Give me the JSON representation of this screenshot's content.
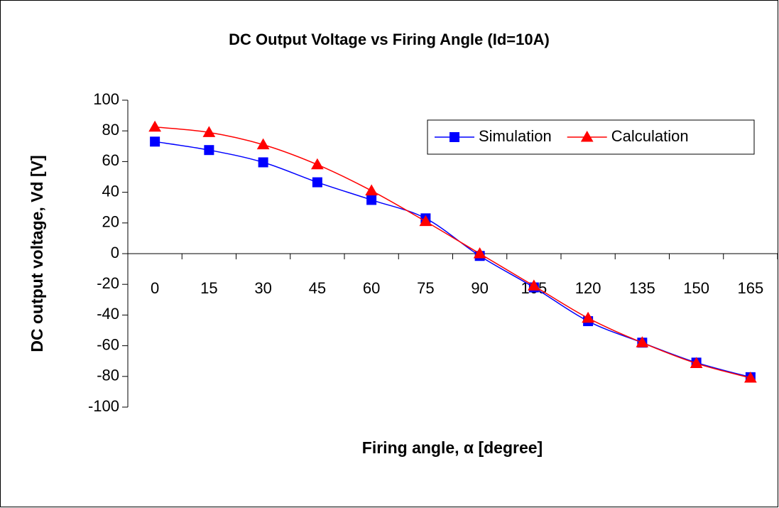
{
  "chart_data": {
    "type": "line",
    "title": "DC Output Voltage vs Firing Angle (Id=10A)",
    "x_label": "Firing angle, α [degree]",
    "y_label": "DC output voltage, Vd [V]",
    "categories": [
      0,
      15,
      30,
      45,
      60,
      75,
      90,
      105,
      120,
      135,
      150,
      165
    ],
    "series": [
      {
        "name": "Simulation",
        "color": "#0000ff",
        "marker": "square",
        "values": [
          73,
          67.5,
          59.5,
          46.5,
          35,
          23,
          -1.5,
          -22,
          -44,
          -58,
          -71,
          -80.5
        ]
      },
      {
        "name": "Calculation",
        "color": "#ff0000",
        "marker": "triangle",
        "values": [
          82.5,
          79,
          71,
          58,
          41,
          21,
          0,
          -21,
          -42,
          -58,
          -71.5,
          -81
        ]
      }
    ],
    "ylim": [
      -100,
      100
    ],
    "yticks": [
      -100,
      -80,
      -60,
      -40,
      -20,
      0,
      20,
      40,
      60,
      80,
      100
    ],
    "legend": "upper right",
    "smooth": true
  }
}
